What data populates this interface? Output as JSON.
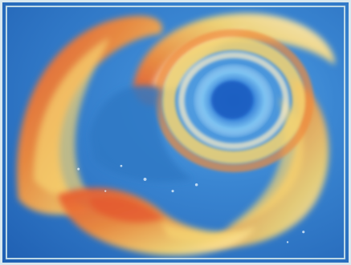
{
  "painting": {
    "subject": "swirling-vortex-painting",
    "colors": {
      "sky_blue": "#2f78c4",
      "deep_blue": "#1f5fb2",
      "eye_blue": "#2a74d0",
      "eye_glow": "#86c8f2",
      "cloud_orange": "#f08a3a",
      "cloud_red": "#e4532d",
      "cloud_yellow": "#f6d470",
      "cloud_cream": "#fff0c8",
      "frame": "#d9e8ef"
    }
  }
}
